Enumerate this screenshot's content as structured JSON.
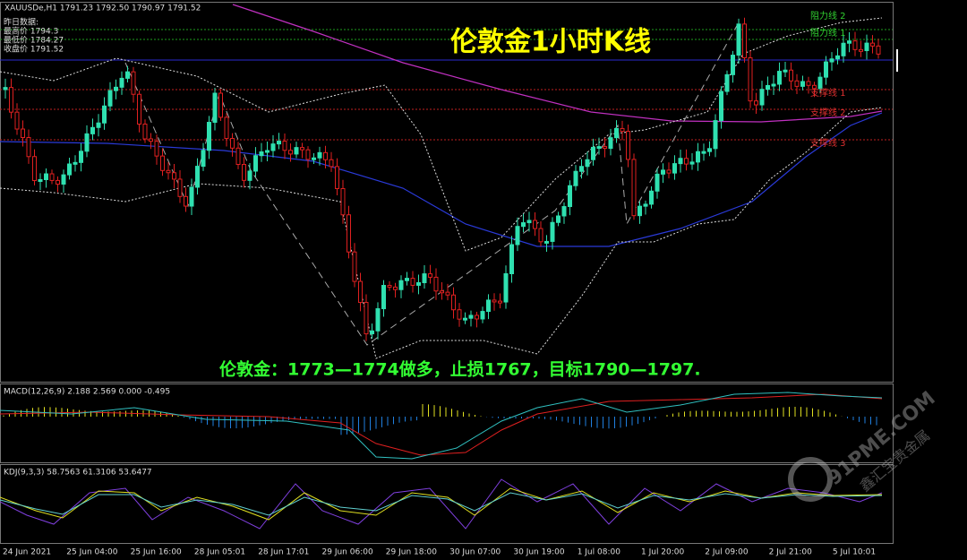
{
  "header": {
    "symbol_line": "XAUUSDe,H1  1791.23 1792.50 1790.97 1791.52"
  },
  "info_box": [
    "昨日数据:",
    "最高价 1794.3",
    "最低价 1784.27",
    "收盘价 1791.52"
  ],
  "title": "伦敦金1小时K线",
  "levels": [
    "阻力线 2",
    "阻力线 1",
    "支撑线 1",
    "支撑线 2",
    "支撑线 3"
  ],
  "strategy": "伦敦金：1773—1774做多，止损1767，目标1790—1797.",
  "macd_label": "MACD(12,26,9) 2.188 2.569 0.000 -0.495",
  "kdj_label": "KDJ(9,3,3) 58.7563 61.3106 53.6477",
  "time_axis": [
    "24 Jun 2021",
    "25 Jun 04:00",
    "25 Jun 16:00",
    "28 Jun 05:01",
    "28 Jun 17:01",
    "29 Jun 06:00",
    "29 Jun 18:00",
    "30 Jun 07:00",
    "30 Jun 19:00",
    "1 Jul 08:00",
    "1 Jul 20:00",
    "2 Jul 09:00",
    "2 Jul 21:00",
    "5 Jul 10:01"
  ],
  "watermark": {
    "site": "91PME.COM",
    "brand": "鑫汇宝贵金属"
  }
}
